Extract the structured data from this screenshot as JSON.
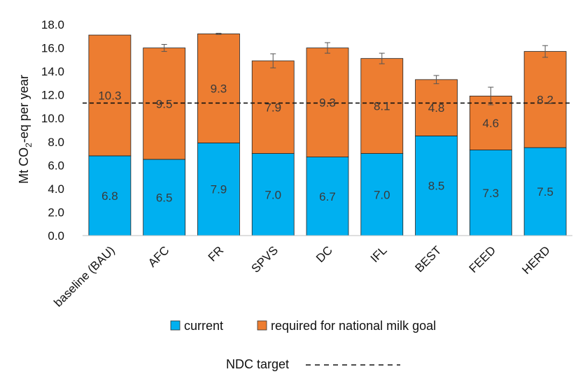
{
  "chart_data": {
    "type": "bar",
    "stacked": true,
    "categories": [
      "baseline (BAU)",
      "AFC",
      "FR",
      "SPVS",
      "DC",
      "IFL",
      "BEST",
      "FEED",
      "HERD"
    ],
    "series": [
      {
        "name": "current",
        "color": "#00b0f0",
        "values": [
          6.8,
          6.5,
          7.9,
          7.0,
          6.7,
          7.0,
          8.5,
          7.3,
          7.5
        ]
      },
      {
        "name": "required for national milk goal",
        "color": "#ed7d31",
        "values": [
          10.3,
          9.5,
          9.3,
          7.9,
          9.3,
          8.1,
          4.8,
          4.6,
          8.2
        ]
      }
    ],
    "value_labels": {
      "current": [
        "6.8",
        "6.5",
        "7.9",
        "7.0",
        "6.7",
        "7.0",
        "8.5",
        "7.3",
        "7.5"
      ],
      "required for national milk goal": [
        "10.3",
        "9.5",
        "9.3",
        "7.9",
        "9.3",
        "8.1",
        "4.8",
        "4.6",
        "8.2"
      ]
    },
    "error_bars": [
      0.0,
      0.3,
      0.05,
      0.6,
      0.45,
      0.45,
      0.35,
      0.75,
      0.5
    ],
    "reference_line": {
      "name": "NDC target",
      "value": 11.3,
      "style": "dashed"
    },
    "ylabel_main": "Mt CO",
    "ylabel_sub": "2",
    "ylabel_rest": "-eq per year",
    "ylim": [
      0,
      18
    ],
    "yticks": [
      "0.0",
      "2.0",
      "4.0",
      "6.0",
      "8.0",
      "10.0",
      "12.0",
      "14.0",
      "16.0",
      "18.0"
    ],
    "grid": false,
    "legend": {
      "position": "bottom",
      "ndc_label": "NDC target"
    }
  }
}
